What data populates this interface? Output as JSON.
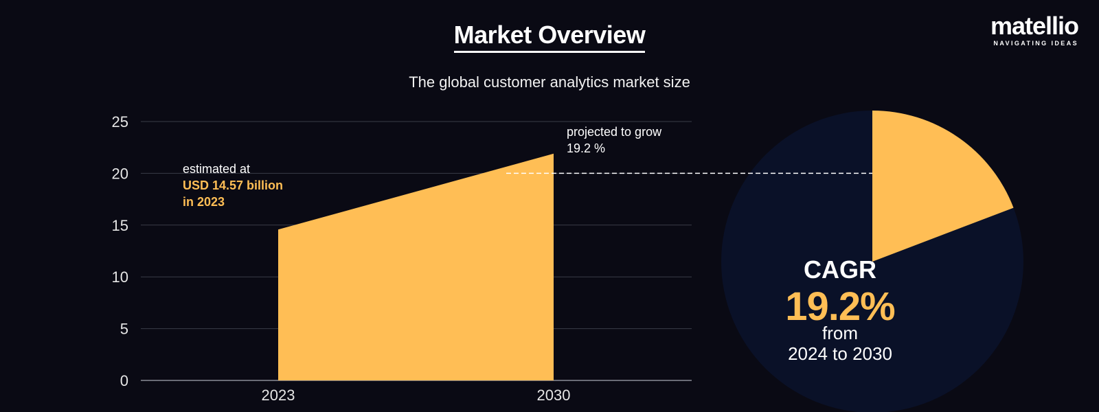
{
  "header": {
    "title": "Market Overview",
    "subtitle": "The global customer analytics market size"
  },
  "logo": {
    "wordmark": "matellio",
    "tagline": "NAVIGATING IDEAS"
  },
  "annotations": {
    "start": {
      "line1": "estimated at",
      "line2": "USD 14.57 billion",
      "line3": "in 2023"
    },
    "end": {
      "line1": "projected to grow",
      "line2": "19.2 %"
    }
  },
  "cagr": {
    "label": "CAGR",
    "value": "19.2%",
    "from": "from",
    "range": "2024 to 2030",
    "fraction": 0.192
  },
  "colors": {
    "accent": "#ffbe55",
    "background": "#0a0a14",
    "pie_background": "#0a1128",
    "grid": "#3a3d48",
    "text": "#ffffff"
  },
  "chart_data": [
    {
      "type": "area",
      "x": [
        "2023",
        "2030"
      ],
      "series": [
        {
          "values": [
            14.57,
            21.9
          ]
        }
      ],
      "ylim": [
        0,
        25
      ],
      "yticks": [
        0,
        5,
        10,
        15,
        20,
        25
      ],
      "reference_line": 20,
      "grid": true
    },
    {
      "type": "pie",
      "slices": [
        {
          "label": "CAGR",
          "value": 19.2
        },
        {
          "value": 80.8
        }
      ]
    }
  ]
}
